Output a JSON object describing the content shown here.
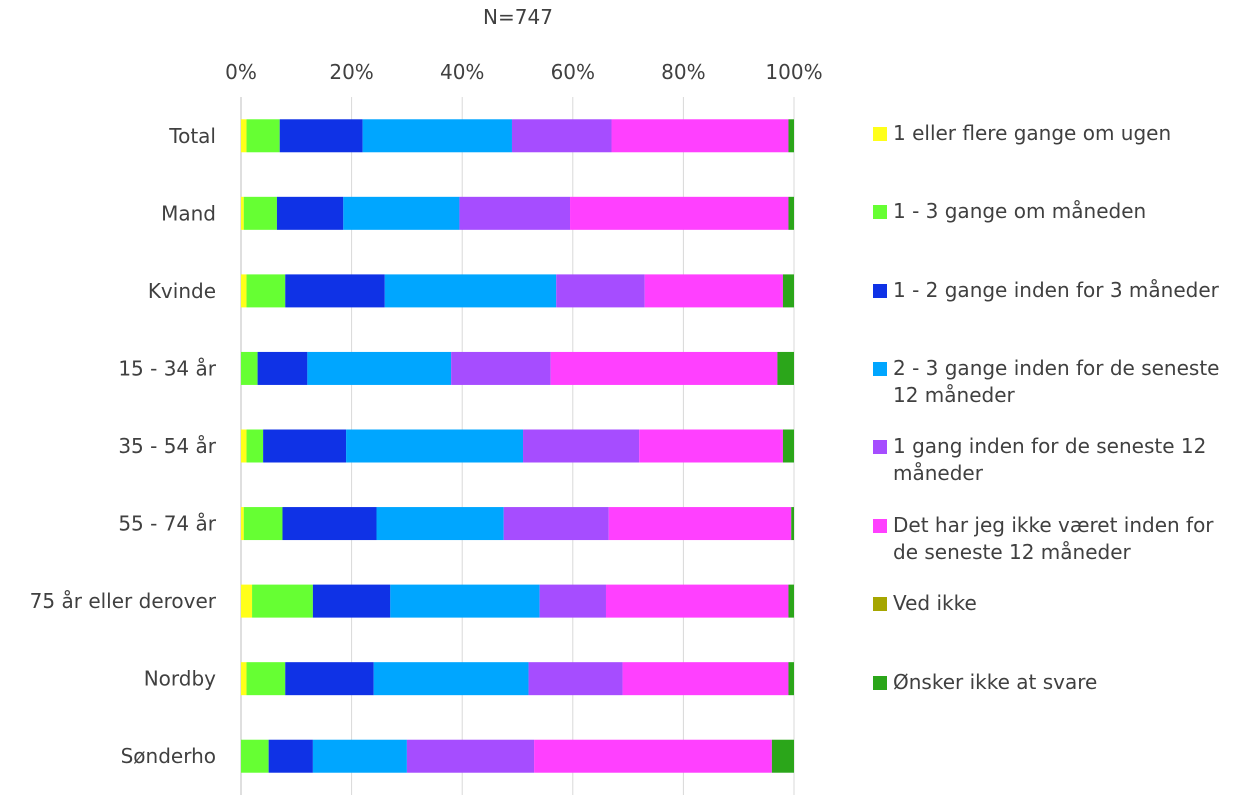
{
  "chart_data": {
    "type": "bar",
    "orientation": "horizontal",
    "stacked": "percent",
    "title": "N=747",
    "xlabel": "",
    "ylabel": "",
    "xlim": [
      0,
      100
    ],
    "xticks": [
      "0%",
      "20%",
      "40%",
      "60%",
      "80%",
      "100%"
    ],
    "grid": true,
    "legend_position": "right",
    "categories": [
      "Total",
      "Mand",
      "Kvinde",
      "15 - 34 år",
      "35 - 54 år",
      "55 - 74 år",
      "75 år eller derover",
      "Nordby",
      "Sønderho"
    ],
    "series": [
      {
        "name": "1 eller flere gange om ugen",
        "color": "#FFFF1A",
        "values": [
          1,
          0.5,
          1,
          0,
          1,
          0.5,
          2,
          1,
          0
        ]
      },
      {
        "name": "1 - 3 gange om måneden",
        "color": "#66FF33",
        "values": [
          6,
          6,
          7,
          3,
          3,
          7,
          11,
          7,
          5
        ]
      },
      {
        "name": "1 - 2 gange inden for 3 måneder",
        "color": "#0F32E6",
        "values": [
          15,
          12,
          18,
          9,
          15,
          17,
          14,
          16,
          8
        ]
      },
      {
        "name": "2 - 3 gange inden for de seneste 12 måneder",
        "color": "#00A6FF",
        "values": [
          27,
          21,
          31,
          26,
          32,
          23,
          27,
          28,
          17
        ]
      },
      {
        "name": "1 gang inden for de seneste 12 måneder",
        "color": "#A64DFF",
        "values": [
          18,
          20,
          16,
          18,
          21,
          19,
          12,
          17,
          23
        ]
      },
      {
        "name": "Det har jeg ikke været inden for de seneste 12 måneder",
        "color": "#FF40FF",
        "values": [
          32,
          39.5,
          25,
          41,
          26,
          33,
          33,
          30,
          43
        ]
      },
      {
        "name": "Ved ikke",
        "color": "#A6A600",
        "values": [
          0,
          0,
          0,
          0,
          0,
          0,
          0,
          0,
          0
        ]
      },
      {
        "name": "Ønsker ikke at svare",
        "color": "#2BA61A",
        "values": [
          1,
          1,
          2,
          3,
          2,
          0.5,
          1,
          1,
          4
        ]
      }
    ]
  }
}
